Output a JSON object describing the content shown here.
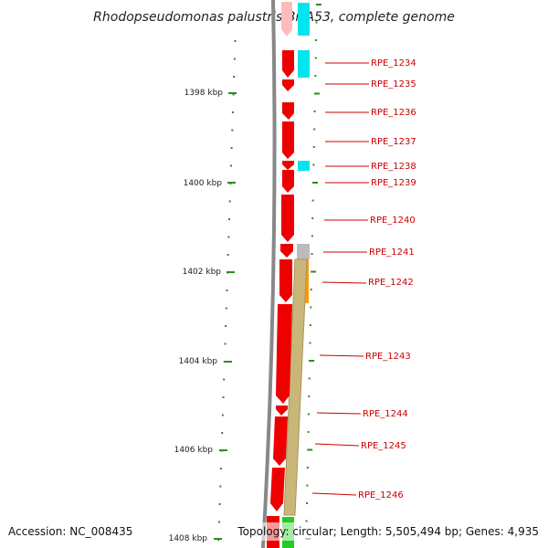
{
  "title": "Rhodopseudomonas palustris BisA53, complete genome",
  "footer": {
    "accession": "Accession: NC_008435",
    "summary": "Topology: circular; Length: 5,505,494 bp; Genes: 4,935"
  },
  "colors": {
    "cds": "#ee0000",
    "rna": "#00e5ee",
    "backbone": "#888888",
    "tick": "#2e8b22",
    "label": "#cc0000",
    "feature_gray": "#bbbbbb",
    "feature_orange": "#ff9900",
    "feature_khaki": "#c9b77a",
    "feature_green": "#22cc22"
  },
  "scale": {
    "unit": "kbp",
    "labels": [
      {
        "kbp": 1398,
        "text": "1398 kbp"
      },
      {
        "kbp": 1400,
        "text": "1400 kbp"
      },
      {
        "kbp": 1402,
        "text": "1402 kbp"
      },
      {
        "kbp": 1404,
        "text": "1404 kbp"
      },
      {
        "kbp": 1406,
        "text": "1406 kbp"
      },
      {
        "kbp": 1408,
        "text": "1408 kbp"
      }
    ]
  },
  "genes": [
    {
      "label": "RPE_1234"
    },
    {
      "label": "RPE_1235"
    },
    {
      "label": "RPE_1236"
    },
    {
      "label": "RPE_1237"
    },
    {
      "label": "RPE_1238"
    },
    {
      "label": "RPE_1239"
    },
    {
      "label": "RPE_1240"
    },
    {
      "label": "RPE_1241"
    },
    {
      "label": "RPE_1242"
    },
    {
      "label": "RPE_1243"
    },
    {
      "label": "RPE_1244"
    },
    {
      "label": "RPE_1245"
    },
    {
      "label": "RPE_1246"
    }
  ]
}
